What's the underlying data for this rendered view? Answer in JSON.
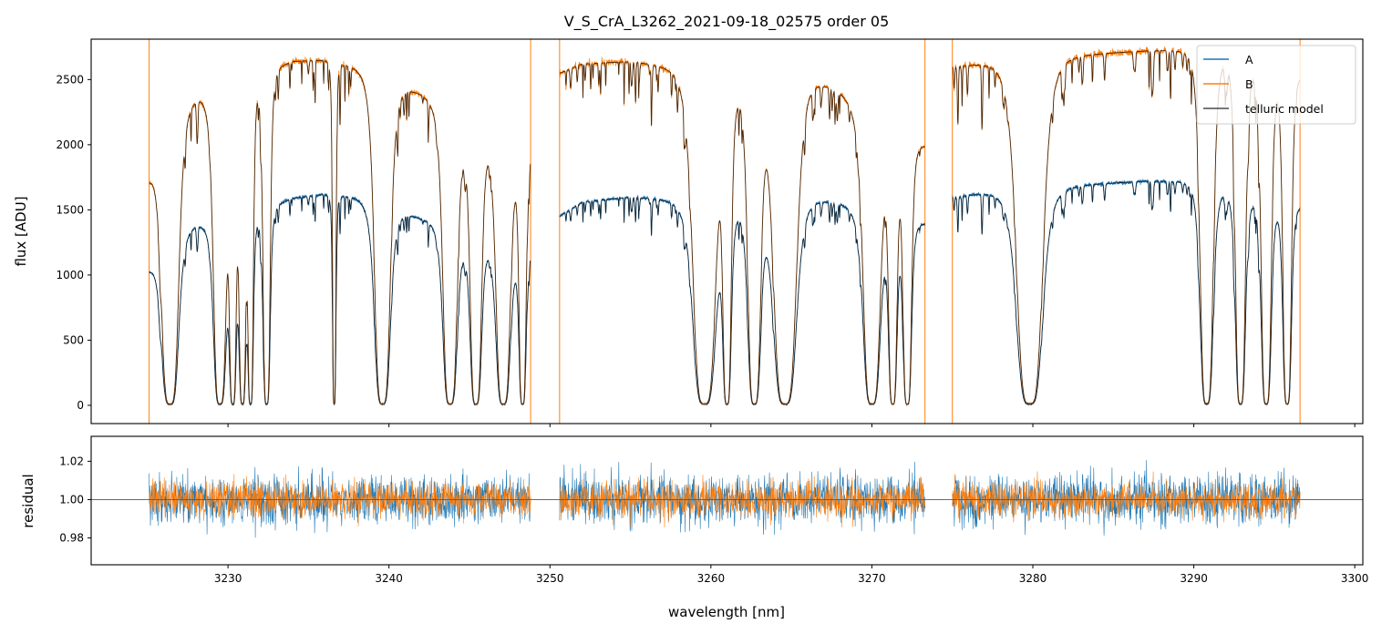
{
  "chart_data": [
    {
      "type": "line",
      "panel": "flux",
      "title": "V_S_CrA_L3262_2021-09-18_02575  order 05",
      "xlabel": "",
      "ylabel": "flux [ADU]",
      "xlim": [
        3221.5,
        3300.5
      ],
      "ylim": [
        -140,
        2810
      ],
      "yticks": [
        0,
        500,
        1000,
        1500,
        2000,
        2500
      ],
      "xticks": [
        3230,
        3240,
        3250,
        3260,
        3270,
        3280,
        3290,
        3300
      ],
      "legend_position": "top-right",
      "chips": [
        [
          3225.1,
          3248.8
        ],
        [
          3250.6,
          3273.3
        ],
        [
          3275.0,
          3296.6
        ]
      ],
      "edge_spikes_x": [
        3225.1,
        3248.8,
        3250.6,
        3273.3,
        3275.0,
        3296.6
      ],
      "series": [
        {
          "name": "A",
          "color": "#1f77b4",
          "continuum_x": [
            3225,
            3227,
            3230,
            3232,
            3234,
            3236,
            3238,
            3240,
            3242,
            3244,
            3246,
            3248,
            3248.8,
            3250.6,
            3252,
            3255,
            3258,
            3260,
            3262,
            3264,
            3266,
            3268,
            3270,
            3272,
            3273.3,
            3275,
            3278,
            3281,
            3284,
            3287,
            3290,
            3293,
            3296.6
          ],
          "continuum_y": [
            1050,
            1380,
            1440,
            1500,
            1590,
            1620,
            1600,
            1520,
            1440,
            1380,
            1300,
            1220,
            1200,
            1450,
            1560,
            1600,
            1580,
            1560,
            1560,
            1590,
            1600,
            1560,
            1500,
            1430,
            1400,
            1600,
            1650,
            1680,
            1700,
            1720,
            1720,
            1650,
            1540
          ],
          "absorption_bands": [
            [
              3226.4,
              0.6
            ],
            [
              3229.5,
              0.45
            ],
            [
              3230.3,
              0.25
            ],
            [
              3230.9,
              0.25
            ],
            [
              3231.4,
              0.2
            ],
            [
              3232.4,
              0.25
            ],
            [
              3236.6,
              0.12
            ],
            [
              3239.6,
              0.55
            ],
            [
              3243.8,
              0.5
            ],
            [
              3245.4,
              0.4
            ],
            [
              3247.1,
              0.5
            ],
            [
              3248.3,
              0.25
            ],
            [
              3259.6,
              0.8
            ],
            [
              3261.0,
              0.3
            ],
            [
              3262.7,
              0.45
            ],
            [
              3264.6,
              0.8
            ],
            [
              3270.0,
              0.6
            ],
            [
              3271.3,
              0.3
            ],
            [
              3272.2,
              0.3
            ],
            [
              3279.8,
              0.9
            ],
            [
              3290.8,
              0.45
            ],
            [
              3292.9,
              0.35
            ],
            [
              3294.5,
              0.35
            ],
            [
              3295.8,
              0.3
            ]
          ]
        },
        {
          "name": "B",
          "color": "#ff7f0e",
          "continuum_x": [
            3225,
            3227,
            3230,
            3232,
            3234,
            3236,
            3238,
            3240,
            3242,
            3244,
            3246,
            3248,
            3248.8,
            3250.6,
            3252,
            3255,
            3258,
            3260,
            3262,
            3264,
            3266,
            3268,
            3270,
            3272,
            3273.3,
            3275,
            3278,
            3281,
            3284,
            3287,
            3290,
            3293,
            3296.6
          ],
          "continuum_y": [
            1750,
            2350,
            2450,
            2550,
            2640,
            2650,
            2600,
            2500,
            2400,
            2280,
            2150,
            2030,
            2000,
            2550,
            2620,
            2640,
            2600,
            2560,
            2520,
            2520,
            2540,
            2420,
            2250,
            2050,
            2000,
            2600,
            2650,
            2680,
            2700,
            2720,
            2730,
            2700,
            2550
          ],
          "absorption_bands": [
            [
              3226.4,
              0.6
            ],
            [
              3229.5,
              0.45
            ],
            [
              3230.3,
              0.25
            ],
            [
              3230.9,
              0.25
            ],
            [
              3231.4,
              0.2
            ],
            [
              3232.4,
              0.25
            ],
            [
              3236.6,
              0.12
            ],
            [
              3239.6,
              0.55
            ],
            [
              3243.8,
              0.5
            ],
            [
              3245.4,
              0.4
            ],
            [
              3247.1,
              0.5
            ],
            [
              3248.3,
              0.25
            ],
            [
              3259.6,
              0.8
            ],
            [
              3261.0,
              0.3
            ],
            [
              3262.7,
              0.45
            ],
            [
              3264.6,
              0.8
            ],
            [
              3270.0,
              0.6
            ],
            [
              3271.3,
              0.3
            ],
            [
              3272.2,
              0.3
            ],
            [
              3279.8,
              0.9
            ],
            [
              3290.8,
              0.45
            ],
            [
              3292.9,
              0.35
            ],
            [
              3294.5,
              0.35
            ],
            [
              3295.8,
              0.3
            ]
          ]
        },
        {
          "name": "telluric model",
          "color": "#000000"
        }
      ]
    },
    {
      "type": "line",
      "panel": "residual",
      "xlabel": "wavelength [nm]",
      "ylabel": "residual",
      "xlim": [
        3221.5,
        3300.5
      ],
      "ylim": [
        0.966,
        1.033
      ],
      "yticks": [
        0.98,
        1.0,
        1.02
      ],
      "ytick_labels": [
        "0.98",
        "1.00",
        "1.02"
      ],
      "reference_line_y": 1.0,
      "series": [
        {
          "name": "A",
          "color": "#1f77b4",
          "scatter_sigma": 0.011
        },
        {
          "name": "B",
          "color": "#ff7f0e",
          "scatter_sigma": 0.008
        }
      ]
    }
  ]
}
